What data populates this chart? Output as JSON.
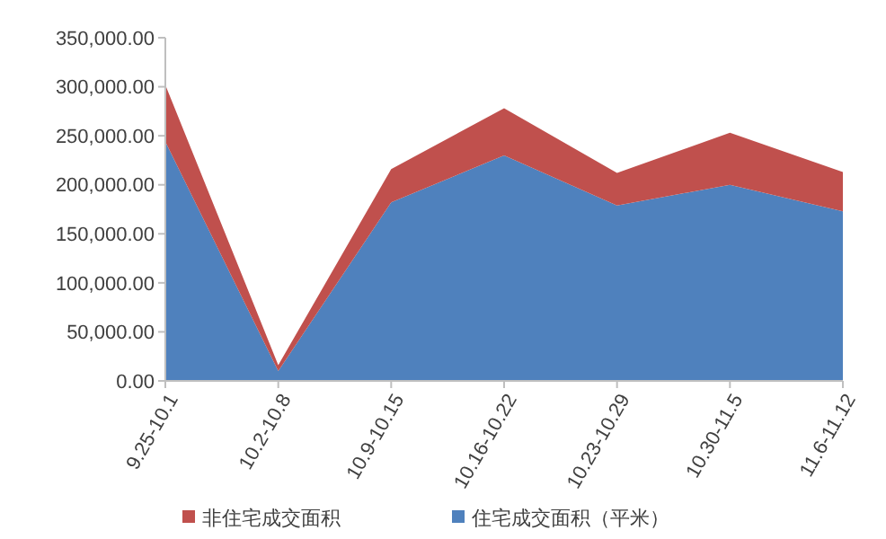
{
  "chart_data": {
    "type": "area",
    "stacked": true,
    "categories": [
      "9.25-10.1",
      "10.2-10.8",
      "10.9-10.15",
      "10.16-10.22",
      "10.23-10.29",
      "10.30-11.5",
      "11.6-11.12"
    ],
    "series": [
      {
        "name": "住宅成交面积（平米）",
        "color": "#4f81bd",
        "values": [
          244000,
          10000,
          182000,
          230000,
          179000,
          200000,
          173000
        ]
      },
      {
        "name": "非住宅成交面积",
        "color": "#c0504d",
        "values": [
          58000,
          6000,
          34000,
          48000,
          33000,
          53000,
          40000
        ]
      }
    ],
    "ylim": [
      0,
      350000
    ],
    "yticks": [
      {
        "value": 0,
        "label": "0.00"
      },
      {
        "value": 50000,
        "label": "50,000.00"
      },
      {
        "value": 100000,
        "label": "100,000.00"
      },
      {
        "value": 150000,
        "label": "150,000.00"
      },
      {
        "value": 200000,
        "label": "200,000.00"
      },
      {
        "value": 250000,
        "label": "250,000.00"
      },
      {
        "value": 300000,
        "label": "300,000.00"
      },
      {
        "value": 350000,
        "label": "350,000.00"
      }
    ],
    "legend": "bottom",
    "grid": false
  }
}
